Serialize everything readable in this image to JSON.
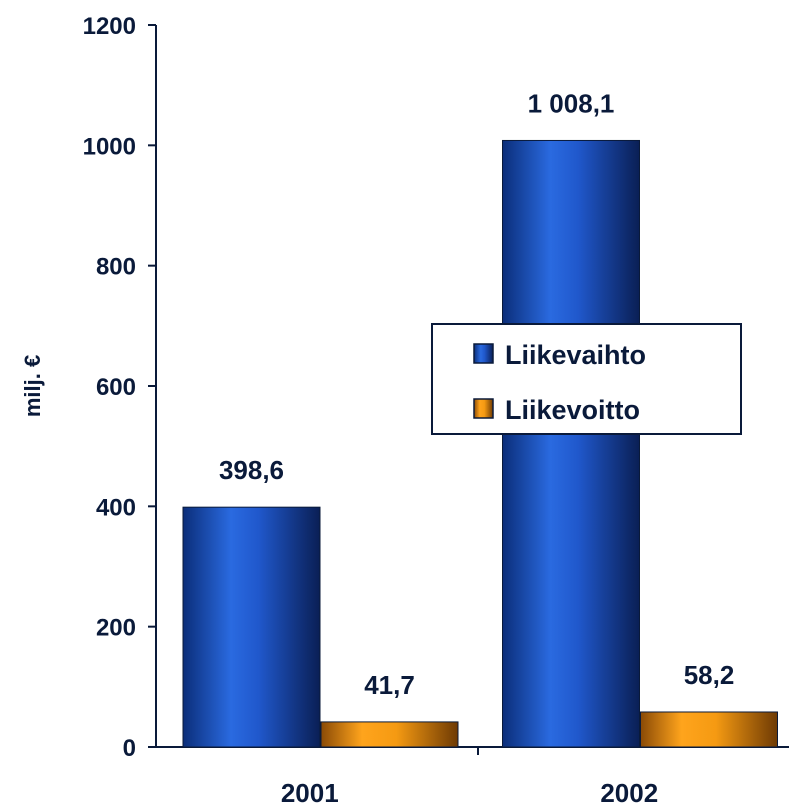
{
  "chart_data": {
    "type": "bar",
    "categories": [
      "2001",
      "2002"
    ],
    "series": [
      {
        "name": "Liikevaihto",
        "values": [
          398.6,
          1008.1
        ],
        "labels": [
          "398,6",
          "1 008,1"
        ],
        "color": "#1f55c8"
      },
      {
        "name": "Liikevoitto",
        "values": [
          41.7,
          58.2
        ],
        "labels": [
          "41,7",
          "58,2"
        ],
        "color": "#f09a10"
      }
    ],
    "ylabel": "milj. €",
    "ylim": [
      0,
      1200
    ],
    "yticks": [
      0,
      200,
      400,
      600,
      800,
      1000,
      1200
    ],
    "grid": false,
    "legend_position": "center-right"
  }
}
